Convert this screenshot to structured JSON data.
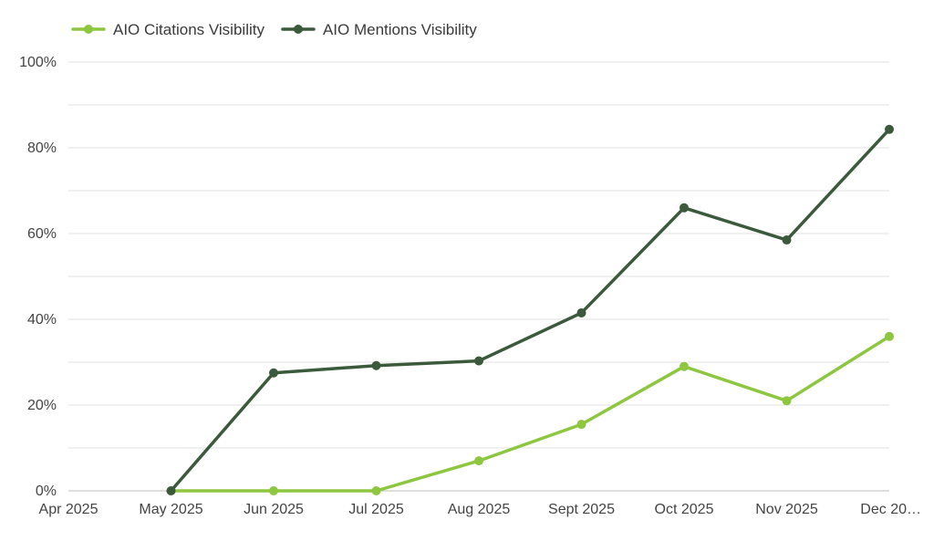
{
  "chart_data": {
    "type": "line",
    "categories": [
      "Apr 2025",
      "May 2025",
      "Jun 2025",
      "Jul 2025",
      "Aug 2025",
      "Sept 2025",
      "Oct 2025",
      "Nov 2025",
      "Dec 20…"
    ],
    "series": [
      {
        "name": "AIO Citations Visibility",
        "color": "#8dc63f",
        "values": [
          null,
          0,
          0,
          0,
          7,
          15.5,
          29,
          21,
          36
        ]
      },
      {
        "name": "AIO Mentions Visibility",
        "color": "#3b5a3b",
        "values": [
          null,
          0,
          27.5,
          29.2,
          30.3,
          41.5,
          66,
          58.5,
          84.3
        ]
      }
    ],
    "yticks": [
      "0%",
      "20%",
      "40%",
      "60%",
      "80%",
      "100%"
    ],
    "ylim": [
      0,
      100
    ],
    "grid": true,
    "legend": "top-left"
  }
}
